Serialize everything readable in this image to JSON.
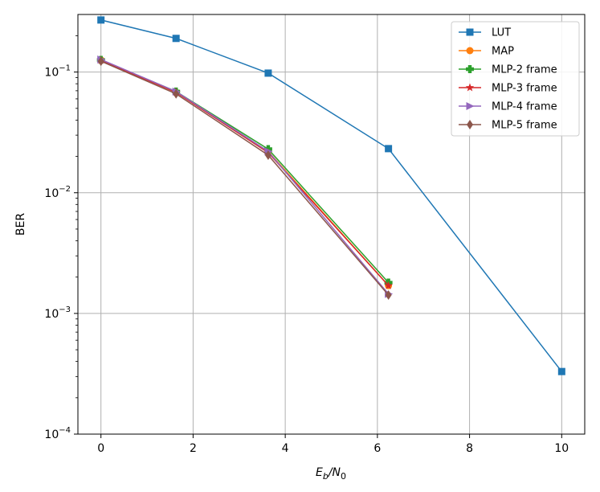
{
  "chart_data": {
    "type": "line",
    "xlabel": {
      "base": "E",
      "sub1": "b",
      "slash": "/N",
      "sub2": "0"
    },
    "ylabel": "BER",
    "xscale": "linear",
    "yscale": "log",
    "xlim": [
      -0.5,
      10.5
    ],
    "ylim": [
      0.0001,
      0.3
    ],
    "grid": true,
    "legend_position": "top-right",
    "x_ticks": [
      {
        "value": 0,
        "label": "0"
      },
      {
        "value": 2,
        "label": "2"
      },
      {
        "value": 4,
        "label": "4"
      },
      {
        "value": 6,
        "label": "6"
      },
      {
        "value": 8,
        "label": "8"
      },
      {
        "value": 10,
        "label": "10"
      }
    ],
    "y_ticks": [
      {
        "value": 0.1,
        "base": "10",
        "exp": "−1"
      },
      {
        "value": 0.01,
        "base": "10",
        "exp": "−2"
      },
      {
        "value": 0.001,
        "base": "10",
        "exp": "−3"
      },
      {
        "value": 0.0001,
        "base": "10",
        "exp": "−4"
      }
    ],
    "series": [
      {
        "name": "LUT",
        "color": "#1f77b4",
        "marker": "square",
        "x": [
          0,
          1.63,
          3.63,
          6.24,
          10.0
        ],
        "y": [
          0.27,
          0.19,
          0.098,
          0.0232,
          0.00033
        ]
      },
      {
        "name": "MAP",
        "color": "#ff7f0e",
        "marker": "circle",
        "x": [
          0,
          1.63,
          3.63,
          6.24
        ],
        "y": [
          0.126,
          0.068,
          0.022,
          0.0017
        ]
      },
      {
        "name": "MLP-2 frame",
        "color": "#2ca02c",
        "marker": "plus",
        "x": [
          0,
          1.63,
          3.63,
          6.24
        ],
        "y": [
          0.126,
          0.069,
          0.023,
          0.0018
        ]
      },
      {
        "name": "MLP-3 frame",
        "color": "#d62728",
        "marker": "star",
        "x": [
          0,
          1.63,
          3.63,
          6.24
        ],
        "y": [
          0.125,
          0.068,
          0.0215,
          0.0017
        ]
      },
      {
        "name": "MLP-4 frame",
        "color": "#9467bd",
        "marker": "triangle-right",
        "x": [
          0,
          1.63,
          3.63,
          6.24
        ],
        "y": [
          0.127,
          0.069,
          0.022,
          0.00145
        ]
      },
      {
        "name": "MLP-5 frame",
        "color": "#8c564b",
        "marker": "diamond",
        "x": [
          0,
          1.63,
          3.63,
          6.24
        ],
        "y": [
          0.123,
          0.066,
          0.0205,
          0.00142
        ]
      }
    ]
  }
}
